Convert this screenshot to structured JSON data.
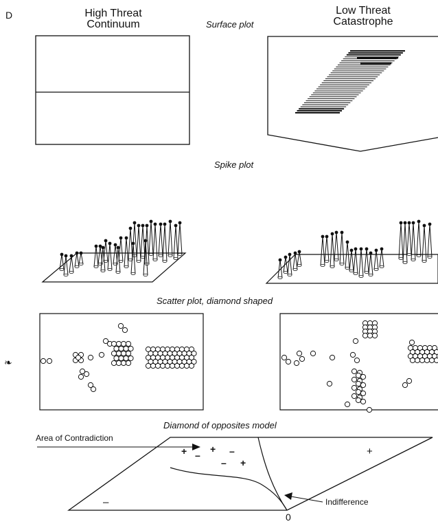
{
  "panel_letter": "D",
  "columns": {
    "left_title": "High Threat\nContinuum",
    "right_title": "Low Threat\nCatastrophe"
  },
  "sections": {
    "surface": "Surface plot",
    "spike": "Spike plot",
    "scatter": "Scatter plot, diamond shaped",
    "diamond": "Diamond of opposites model"
  },
  "diamond_labels": {
    "contradiction": "Area of Contradiction",
    "indifference": "Indifference",
    "zero": "0",
    "plus_right": "+",
    "minus_left": "–",
    "pm_signs": [
      "+",
      "–",
      "+",
      "–",
      "–",
      "+"
    ]
  },
  "stray_mark": "❧"
}
